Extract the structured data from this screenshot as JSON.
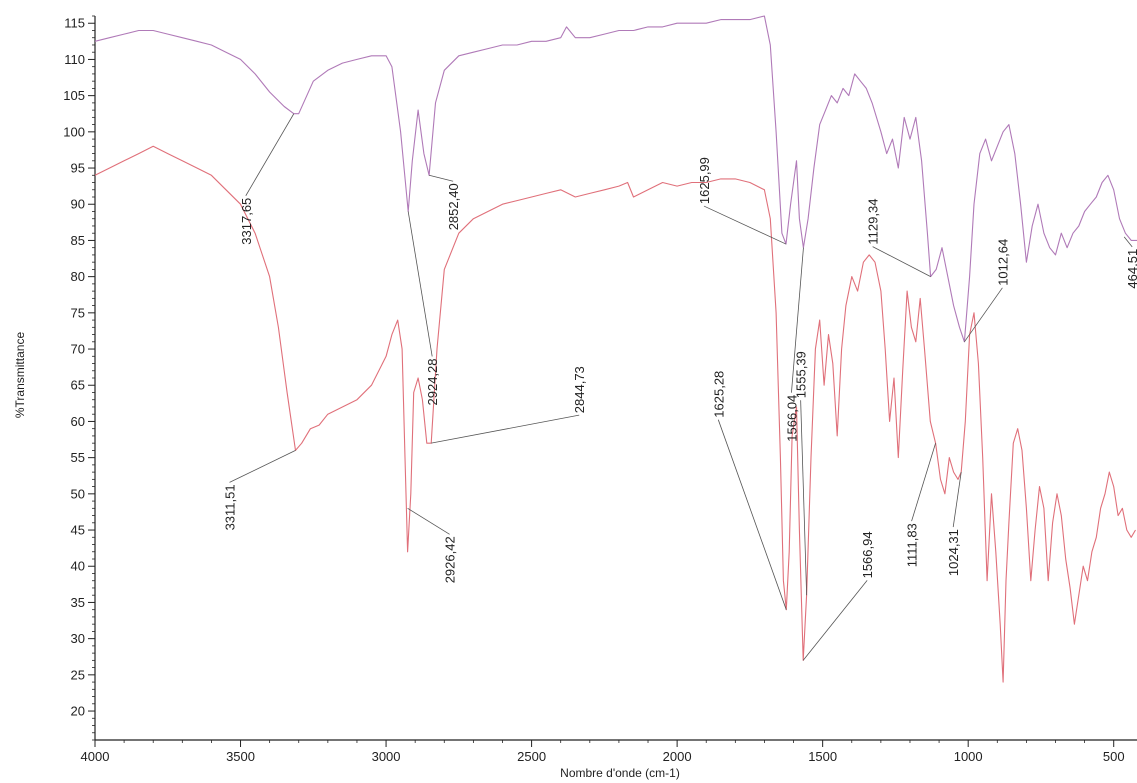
{
  "chart_data": {
    "type": "line",
    "xlabel": "Nombre d'onde (cm-1)",
    "ylabel": "%Transmittance",
    "xlim": [
      4000,
      420
    ],
    "ylim": [
      16,
      116
    ],
    "x_ticks": [
      4000,
      3500,
      3000,
      2500,
      2000,
      1500,
      1000,
      500
    ],
    "y_ticks": [
      20,
      25,
      30,
      35,
      40,
      45,
      50,
      55,
      60,
      65,
      70,
      75,
      80,
      85,
      90,
      95,
      100,
      105,
      110,
      115
    ],
    "grid": false,
    "legend": "none",
    "colors": {
      "upper": "#b07ab8",
      "lower": "#e0707a",
      "leader": "#555555",
      "axis": "#222222"
    },
    "series": [
      {
        "x": [
          4000,
          3950,
          3900,
          3850,
          3800,
          3750,
          3700,
          3650,
          3600,
          3550,
          3500,
          3450,
          3400,
          3350,
          3317,
          3300,
          3250,
          3200,
          3150,
          3100,
          3050,
          3000,
          2980,
          2950,
          2924,
          2910,
          2890,
          2870,
          2852,
          2830,
          2800,
          2750,
          2700,
          2650,
          2600,
          2550,
          2500,
          2450,
          2400,
          2380,
          2350,
          2300,
          2250,
          2200,
          2150,
          2100,
          2050,
          2000,
          1950,
          1900,
          1850,
          1800,
          1750,
          1700,
          1680,
          1660,
          1640,
          1626,
          1610,
          1590,
          1580,
          1566,
          1550,
          1530,
          1510,
          1490,
          1470,
          1450,
          1430,
          1410,
          1390,
          1370,
          1350,
          1330,
          1300,
          1280,
          1260,
          1240,
          1220,
          1200,
          1180,
          1160,
          1140,
          1129,
          1110,
          1090,
          1070,
          1050,
          1030,
          1013,
          995,
          980,
          960,
          940,
          920,
          900,
          880,
          860,
          840,
          820,
          800,
          780,
          760,
          740,
          720,
          700,
          680,
          660,
          640,
          620,
          600,
          580,
          560,
          540,
          520,
          500,
          480,
          460,
          440,
          420
        ],
        "y": [
          112.5,
          113,
          113.5,
          114,
          114,
          113.5,
          113,
          112.5,
          112,
          111,
          110,
          108,
          105.5,
          103.5,
          102.5,
          102.5,
          107,
          108.5,
          109.5,
          110,
          110.5,
          110.5,
          109,
          100,
          89,
          96,
          103,
          97,
          94,
          104,
          108.5,
          110.5,
          111,
          111.5,
          112,
          112,
          112.5,
          112.5,
          113,
          114.5,
          113,
          113,
          113.5,
          114,
          114,
          114.5,
          114.5,
          115,
          115,
          115,
          115.5,
          115.5,
          115.5,
          116,
          112,
          100,
          86,
          84.5,
          90,
          96,
          88,
          84,
          88,
          95,
          101,
          103,
          105,
          104,
          106,
          105,
          108,
          107,
          106,
          104,
          100,
          97,
          99,
          95,
          102,
          99,
          102,
          96,
          86,
          80,
          81,
          84,
          80,
          76,
          73,
          71,
          80,
          90,
          97,
          99,
          96,
          98,
          100,
          101,
          97,
          90,
          82,
          87,
          90,
          86,
          84,
          83,
          86,
          84,
          86,
          87,
          89,
          90,
          91,
          93,
          94,
          92,
          88,
          86,
          85,
          85
        ]
      },
      {
        "x": [
          4000,
          3950,
          3900,
          3850,
          3800,
          3750,
          3700,
          3650,
          3600,
          3550,
          3500,
          3450,
          3400,
          3370,
          3340,
          3311,
          3290,
          3260,
          3230,
          3200,
          3150,
          3100,
          3050,
          3000,
          2980,
          2960,
          2945,
          2935,
          2926,
          2915,
          2905,
          2890,
          2875,
          2860,
          2845,
          2825,
          2800,
          2750,
          2700,
          2650,
          2600,
          2550,
          2500,
          2450,
          2400,
          2350,
          2300,
          2250,
          2200,
          2170,
          2150,
          2100,
          2050,
          2000,
          1950,
          1900,
          1850,
          1800,
          1750,
          1700,
          1680,
          1660,
          1645,
          1635,
          1625,
          1615,
          1605,
          1590,
          1580,
          1567,
          1555,
          1540,
          1525,
          1510,
          1495,
          1480,
          1465,
          1450,
          1435,
          1420,
          1400,
          1380,
          1360,
          1340,
          1320,
          1300,
          1285,
          1270,
          1255,
          1240,
          1225,
          1210,
          1195,
          1180,
          1165,
          1150,
          1130,
          1112,
          1095,
          1080,
          1065,
          1050,
          1035,
          1024,
          1010,
          995,
          980,
          965,
          950,
          935,
          920,
          905,
          890,
          880,
          870,
          860,
          845,
          830,
          815,
          800,
          785,
          770,
          755,
          740,
          725,
          710,
          695,
          680,
          665,
          650,
          635,
          620,
          605,
          590,
          575,
          560,
          545,
          530,
          515,
          500,
          485,
          470,
          455,
          440,
          425
        ],
        "y": [
          94,
          95,
          96,
          97,
          98,
          97,
          96,
          95,
          94,
          92,
          90,
          86,
          80,
          73,
          64,
          56,
          57,
          59,
          59.5,
          61,
          62,
          63,
          65,
          69,
          72,
          74,
          70,
          55,
          42,
          50,
          64,
          66,
          63,
          57,
          57,
          70,
          81,
          86,
          88,
          89,
          90,
          90.5,
          91,
          91.5,
          92,
          91,
          91.5,
          92,
          92.5,
          93,
          91,
          92,
          93,
          92.5,
          93,
          93,
          93.5,
          93.5,
          93,
          92,
          88,
          75,
          55,
          38,
          34,
          42,
          58,
          62,
          45,
          27,
          36,
          55,
          70,
          74,
          65,
          72,
          68,
          58,
          70,
          76,
          80,
          78,
          82,
          83,
          82,
          78,
          70,
          60,
          66,
          55,
          67,
          78,
          73,
          71,
          77,
          70,
          60,
          57,
          52,
          50,
          55,
          53,
          52,
          53,
          60,
          72,
          75,
          68,
          55,
          38,
          50,
          42,
          32,
          24,
          38,
          46,
          57,
          59,
          56,
          48,
          38,
          45,
          51,
          48,
          38,
          46,
          50,
          47,
          41,
          37,
          32,
          36,
          40,
          38,
          42,
          44,
          48,
          50,
          53,
          51,
          47,
          48,
          45,
          44,
          45
        ]
      }
    ],
    "annotations": [
      {
        "text": "3317,65",
        "x": 3317,
        "y": 102.5
      },
      {
        "text": "2852,40",
        "x": 2852,
        "y": 94
      },
      {
        "text": "2924,28",
        "x": 2924,
        "y": 89
      },
      {
        "text": "1625,99",
        "x": 1626,
        "y": 84.5
      },
      {
        "text": "1566,04",
        "x": 1566,
        "y": 84
      },
      {
        "text": "1129,34",
        "x": 1129,
        "y": 80
      },
      {
        "text": "1012,64",
        "x": 1013,
        "y": 71
      },
      {
        "text": "464,51",
        "x": 464,
        "y": 85.5
      },
      {
        "text": "3311,51",
        "x": 3311,
        "y": 56
      },
      {
        "text": "2926,42",
        "x": 2926,
        "y": 48
      },
      {
        "text": "2844,73",
        "x": 2845,
        "y": 57
      },
      {
        "text": "1625,28",
        "x": 1625,
        "y": 34
      },
      {
        "text": "1555,39",
        "x": 1555,
        "y": 36
      },
      {
        "text": "1566,94",
        "x": 1567,
        "y": 27
      },
      {
        "text": "1111,83",
        "x": 1112,
        "y": 57
      },
      {
        "text": "1024,31",
        "x": 1024,
        "y": 53
      }
    ]
  }
}
